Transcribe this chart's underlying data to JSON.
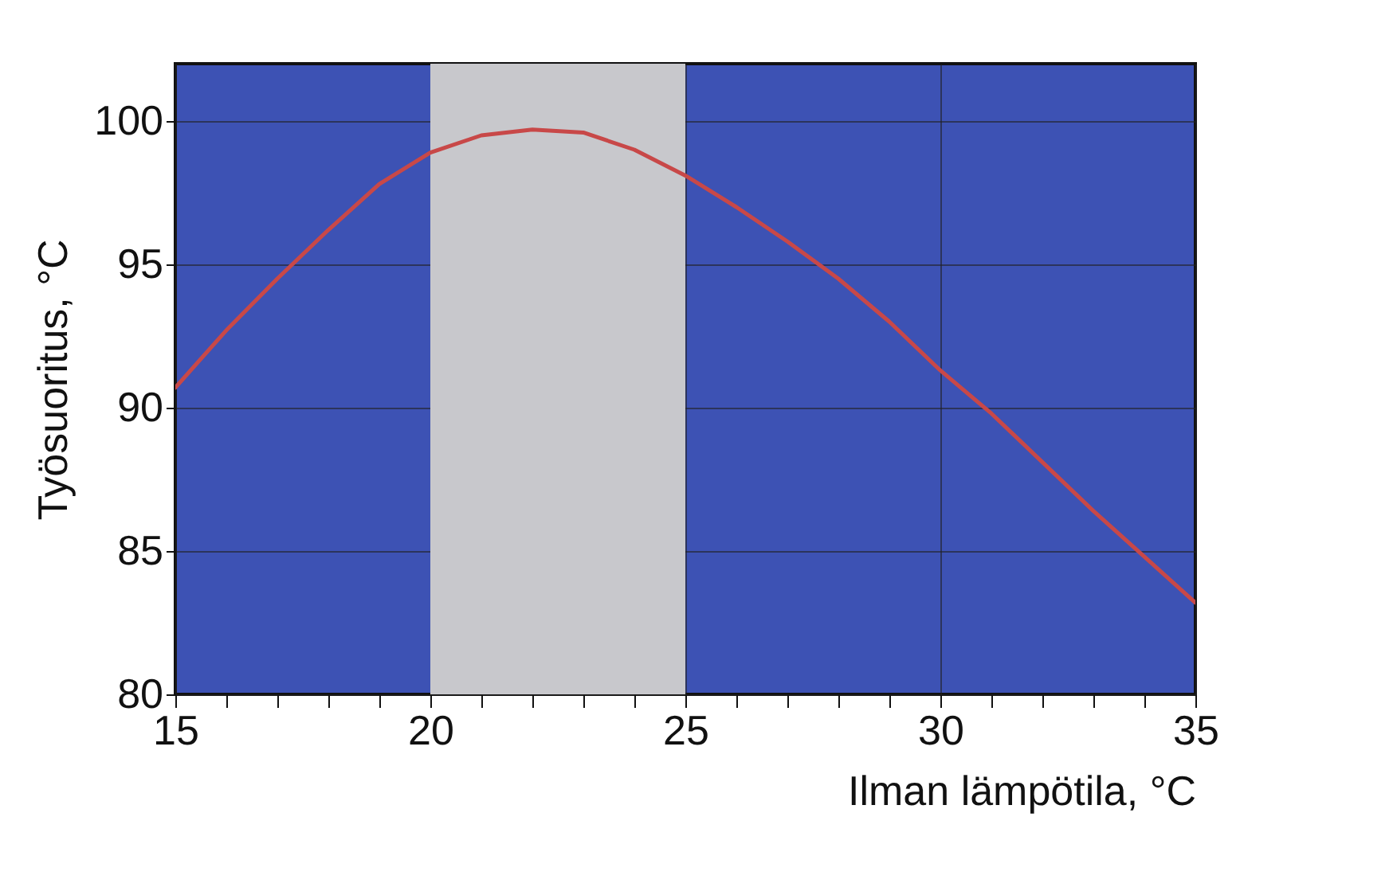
{
  "chart_data": {
    "type": "line",
    "xlabel": "Ilman lämpötila, °C",
    "ylabel": "Työsuoritus, °C",
    "x": [
      15,
      16,
      17,
      18,
      19,
      20,
      21,
      22,
      23,
      24,
      25,
      26,
      27,
      28,
      29,
      30,
      31,
      32,
      33,
      34,
      35
    ],
    "series": [
      {
        "color": "#c84848",
        "values": [
          90.7,
          92.7,
          94.5,
          96.2,
          97.8,
          98.9,
          99.5,
          99.7,
          99.6,
          99.0,
          98.1,
          97.0,
          95.8,
          94.5,
          93.0,
          91.3,
          89.8,
          88.1,
          86.4,
          84.8,
          83.2
        ]
      }
    ],
    "xlim": [
      15,
      35
    ],
    "ylim": [
      80,
      102
    ],
    "xticks": [
      15,
      {
        "value": 16,
        "label": null
      },
      {
        "value": 17,
        "label": null
      },
      {
        "value": 18,
        "label": null
      },
      {
        "value": 19,
        "label": null
      },
      20,
      {
        "value": 21,
        "label": null
      },
      {
        "value": 22,
        "label": null
      },
      {
        "value": 23,
        "label": null
      },
      {
        "value": 24,
        "label": null
      },
      25,
      {
        "value": 26,
        "label": null
      },
      {
        "value": 27,
        "label": null
      },
      {
        "value": 28,
        "label": null
      },
      {
        "value": 29,
        "label": null
      },
      30,
      {
        "value": 31,
        "label": null
      },
      {
        "value": 32,
        "label": null
      },
      {
        "value": 33,
        "label": null
      },
      {
        "value": 34,
        "label": null
      },
      35
    ],
    "yticks": [
      80,
      85,
      90,
      95,
      100
    ],
    "bands": [
      {
        "axis": "x",
        "from": 20,
        "to": 25,
        "color": "#c8c8cc"
      }
    ],
    "grid": true,
    "line_style": "solid",
    "marker": "none"
  }
}
